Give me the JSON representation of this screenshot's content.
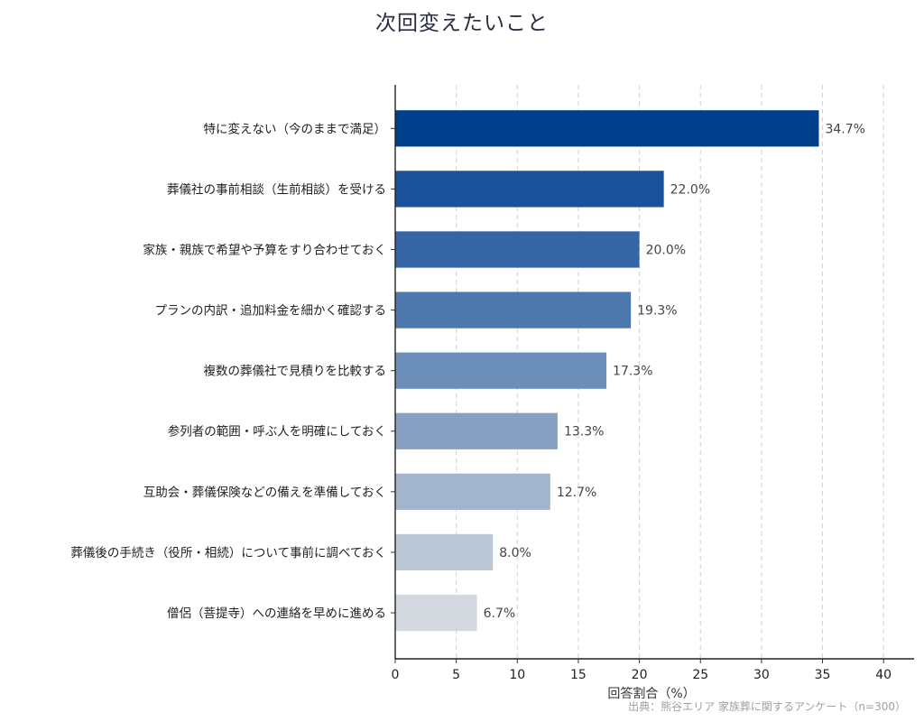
{
  "chart_data": {
    "type": "bar",
    "orientation": "horizontal",
    "title": "次回変えたいこと",
    "xlabel": "回答割合（%）",
    "ylabel": "",
    "xlim": [
      0,
      42.5
    ],
    "xticks": [
      0,
      5,
      10,
      15,
      20,
      25,
      30,
      35,
      40
    ],
    "grid": "vertical dashed",
    "legend": "none",
    "source_note": "出典：熊谷エリア 家族葬に関するアンケート（n=300）",
    "categories": [
      "特に変えない（今のままで満足）",
      "葬儀社の事前相談（生前相談）を受ける",
      "家族・親族で希望や予算をすり合わせておく",
      "プランの内訳・追加料金を細かく確認する",
      "複数の葬儀社で見積りを比較する",
      "参列者の範囲・呼ぶ人を明確にしておく",
      "互助会・葬儀保険などの備えを準備しておく",
      "葬儀後の手続き（役所・相続）について事前に調べておく",
      "僧侶（菩提寺）への連絡を早めに進める"
    ],
    "values": [
      34.7,
      22.0,
      20.0,
      19.3,
      17.3,
      13.3,
      12.7,
      8.0,
      6.7
    ],
    "value_labels": [
      "34.7%",
      "22.0%",
      "20.0%",
      "19.3%",
      "17.3%",
      "13.3%",
      "12.7%",
      "8.0%",
      "6.7%"
    ],
    "colors": [
      "#003f8c",
      "#1a519a",
      "#3565a5",
      "#4d78ae",
      "#6b8fb9",
      "#86a1c2",
      "#a2b5cc",
      "#bcc8d6",
      "#d3d9de"
    ]
  }
}
